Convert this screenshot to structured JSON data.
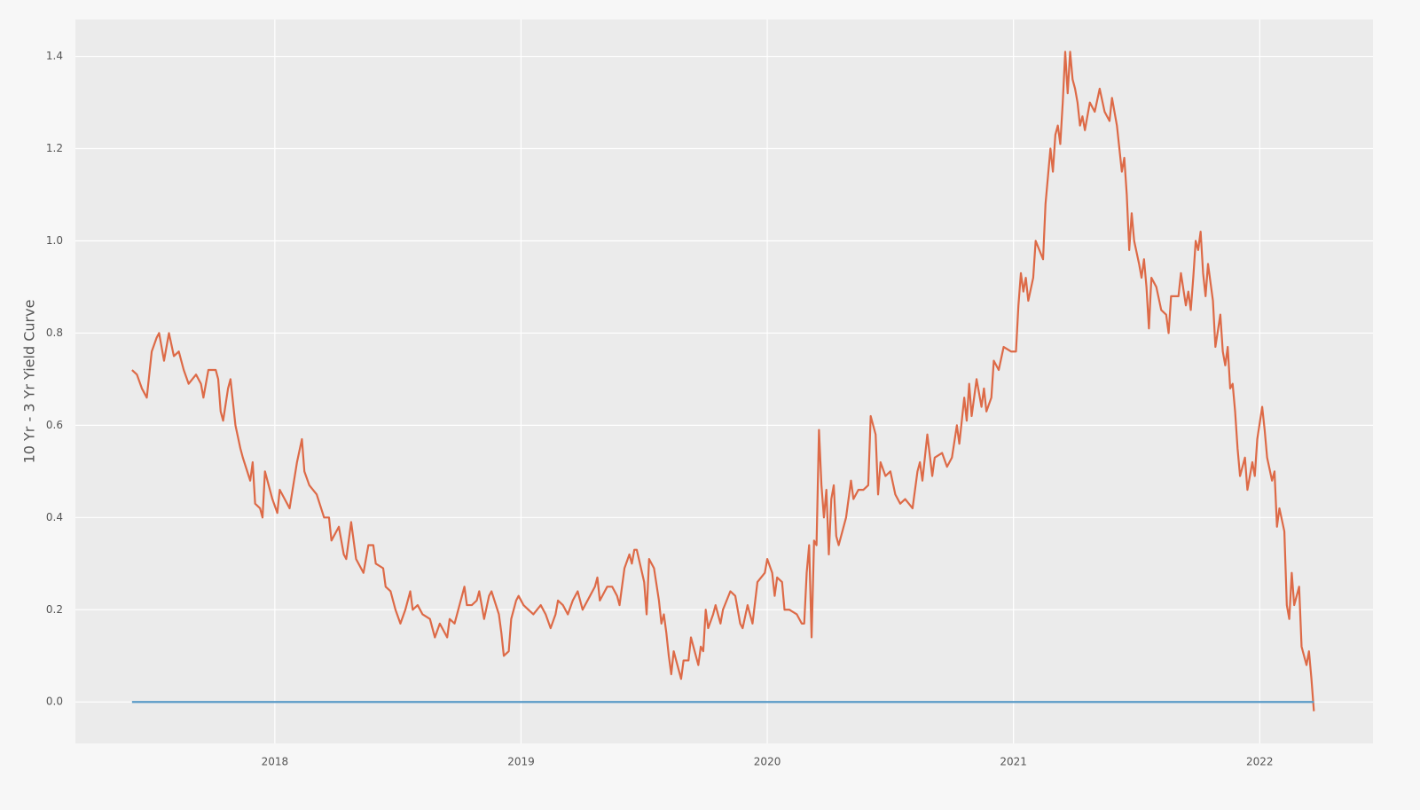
{
  "chart_data": {
    "type": "line",
    "ylabel": "10 Yr - 3 Yr Yield Curve",
    "xlim": [
      2017.19,
      2022.46
    ],
    "ylim": [
      -0.09,
      1.48
    ],
    "xticks": [
      2018,
      2019,
      2020,
      2021,
      2022
    ],
    "yticks": [
      {
        "value": 0,
        "label": "0.0"
      },
      0.2,
      0.4,
      0.6,
      0.8,
      {
        "value": 1,
        "label": "1.0"
      },
      1.2,
      1.4
    ],
    "grid": true,
    "series": [
      {
        "color": "#dd6a47",
        "x": [
          2017.42,
          2017.44,
          2017.46,
          2017.48,
          2017.5,
          2017.52,
          2017.53,
          2017.55,
          2017.57,
          2017.59,
          2017.61,
          2017.63,
          2017.65,
          2017.68,
          2017.7,
          2017.71,
          2017.73,
          2017.76,
          2017.77,
          2017.78,
          2017.79,
          2017.81,
          2017.82,
          2017.84,
          2017.86,
          2017.87,
          2017.9,
          2017.91,
          2017.92,
          2017.94,
          2017.95,
          2017.96,
          2017.99,
          2018.01,
          2018.02,
          2018.04,
          2018.06,
          2018.09,
          2018.11,
          2018.12,
          2018.14,
          2018.17,
          2018.2,
          2018.22,
          2018.23,
          2018.26,
          2018.28,
          2018.29,
          2018.31,
          2018.33,
          2018.36,
          2018.38,
          2018.4,
          2018.41,
          2018.44,
          2018.45,
          2018.47,
          2018.49,
          2018.51,
          2018.53,
          2018.55,
          2018.56,
          2018.58,
          2018.6,
          2018.63,
          2018.65,
          2018.67,
          2018.69,
          2018.7,
          2018.71,
          2018.73,
          2018.76,
          2018.77,
          2018.78,
          2018.8,
          2018.82,
          2018.83,
          2018.85,
          2018.87,
          2018.88,
          2018.91,
          2018.92,
          2018.93,
          2018.95,
          2018.96,
          2018.98,
          2018.99,
          2019.01,
          2019.03,
          2019.05,
          2019.08,
          2019.1,
          2019.12,
          2019.14,
          2019.15,
          2019.17,
          2019.19,
          2019.21,
          2019.23,
          2019.25,
          2019.28,
          2019.3,
          2019.31,
          2019.32,
          2019.35,
          2019.37,
          2019.39,
          2019.4,
          2019.42,
          2019.44,
          2019.45,
          2019.46,
          2019.47,
          2019.5,
          2019.51,
          2019.52,
          2019.54,
          2019.56,
          2019.57,
          2019.58,
          2019.59,
          2019.6,
          2019.61,
          2019.62,
          2019.64,
          2019.65,
          2019.66,
          2019.68,
          2019.69,
          2019.72,
          2019.73,
          2019.74,
          2019.75,
          2019.76,
          2019.78,
          2019.79,
          2019.81,
          2019.82,
          2019.85,
          2019.87,
          2019.89,
          2019.9,
          2019.92,
          2019.94,
          2019.96,
          2019.99,
          2020.0,
          2020.02,
          2020.03,
          2020.04,
          2020.06,
          2020.07,
          2020.09,
          2020.12,
          2020.14,
          2020.15,
          2020.16,
          2020.17,
          2020.18,
          2020.19,
          2020.2,
          2020.21,
          2020.22,
          2020.23,
          2020.24,
          2020.25,
          2020.26,
          2020.27,
          2020.28,
          2020.29,
          2020.32,
          2020.34,
          2020.35,
          2020.37,
          2020.39,
          2020.41,
          2020.42,
          2020.44,
          2020.45,
          2020.46,
          2020.48,
          2020.5,
          2020.52,
          2020.54,
          2020.56,
          2020.59,
          2020.61,
          2020.62,
          2020.63,
          2020.65,
          2020.67,
          2020.68,
          2020.71,
          2020.73,
          2020.75,
          2020.77,
          2020.78,
          2020.8,
          2020.81,
          2020.82,
          2020.83,
          2020.85,
          2020.87,
          2020.88,
          2020.89,
          2020.91,
          2020.92,
          2020.94,
          2020.96,
          2020.99,
          2021.01,
          2021.02,
          2021.03,
          2021.04,
          2021.05,
          2021.06,
          2021.08,
          2021.09,
          2021.12,
          2021.13,
          2021.14,
          2021.15,
          2021.16,
          2021.17,
          2021.18,
          2021.19,
          2021.2,
          2021.21,
          2021.22,
          2021.23,
          2021.24,
          2021.25,
          2021.26,
          2021.27,
          2021.28,
          2021.29,
          2021.31,
          2021.33,
          2021.35,
          2021.37,
          2021.39,
          2021.4,
          2021.42,
          2021.44,
          2021.45,
          2021.46,
          2021.47,
          2021.48,
          2021.49,
          2021.51,
          2021.52,
          2021.53,
          2021.54,
          2021.55,
          2021.56,
          2021.58,
          2021.6,
          2021.62,
          2021.63,
          2021.64,
          2021.67,
          2021.68,
          2021.7,
          2021.71,
          2021.72,
          2021.73,
          2021.74,
          2021.75,
          2021.76,
          2021.77,
          2021.78,
          2021.79,
          2021.81,
          2021.82,
          2021.84,
          2021.85,
          2021.86,
          2021.87,
          2021.88,
          2021.89,
          2021.9,
          2021.91,
          2021.92,
          2021.94,
          2021.95,
          2021.97,
          2021.98,
          2021.99,
          2022.01,
          2022.02,
          2022.03,
          2022.05,
          2022.06,
          2022.07,
          2022.08,
          2022.1,
          2022.11,
          2022.12,
          2022.13,
          2022.14,
          2022.16,
          2022.17,
          2022.19,
          2022.2,
          2022.21,
          2022.22
        ],
        "values": [
          0.72,
          0.71,
          0.68,
          0.66,
          0.76,
          0.79,
          0.8,
          0.74,
          0.8,
          0.75,
          0.76,
          0.72,
          0.69,
          0.71,
          0.69,
          0.66,
          0.72,
          0.72,
          0.7,
          0.63,
          0.61,
          0.68,
          0.7,
          0.6,
          0.55,
          0.53,
          0.48,
          0.52,
          0.43,
          0.42,
          0.4,
          0.5,
          0.44,
          0.41,
          0.46,
          0.44,
          0.42,
          0.52,
          0.57,
          0.5,
          0.47,
          0.45,
          0.4,
          0.4,
          0.35,
          0.38,
          0.32,
          0.31,
          0.39,
          0.31,
          0.28,
          0.34,
          0.34,
          0.3,
          0.29,
          0.25,
          0.24,
          0.2,
          0.17,
          0.2,
          0.24,
          0.2,
          0.21,
          0.19,
          0.18,
          0.14,
          0.17,
          0.15,
          0.14,
          0.18,
          0.17,
          0.23,
          0.25,
          0.21,
          0.21,
          0.22,
          0.24,
          0.18,
          0.23,
          0.24,
          0.19,
          0.15,
          0.1,
          0.11,
          0.18,
          0.22,
          0.23,
          0.21,
          0.2,
          0.19,
          0.21,
          0.19,
          0.16,
          0.19,
          0.22,
          0.21,
          0.19,
          0.22,
          0.24,
          0.2,
          0.23,
          0.25,
          0.27,
          0.22,
          0.25,
          0.25,
          0.23,
          0.21,
          0.29,
          0.32,
          0.3,
          0.33,
          0.33,
          0.26,
          0.19,
          0.31,
          0.29,
          0.22,
          0.17,
          0.19,
          0.15,
          0.1,
          0.06,
          0.11,
          0.07,
          0.05,
          0.09,
          0.09,
          0.14,
          0.08,
          0.12,
          0.11,
          0.2,
          0.16,
          0.19,
          0.21,
          0.17,
          0.2,
          0.24,
          0.23,
          0.17,
          0.16,
          0.21,
          0.17,
          0.26,
          0.28,
          0.31,
          0.28,
          0.23,
          0.27,
          0.26,
          0.2,
          0.2,
          0.19,
          0.17,
          0.17,
          0.28,
          0.34,
          0.14,
          0.35,
          0.34,
          0.59,
          0.47,
          0.4,
          0.46,
          0.32,
          0.44,
          0.47,
          0.36,
          0.34,
          0.4,
          0.48,
          0.44,
          0.46,
          0.46,
          0.47,
          0.62,
          0.58,
          0.45,
          0.52,
          0.49,
          0.5,
          0.45,
          0.43,
          0.44,
          0.42,
          0.5,
          0.52,
          0.48,
          0.58,
          0.49,
          0.53,
          0.54,
          0.51,
          0.53,
          0.6,
          0.56,
          0.66,
          0.61,
          0.69,
          0.62,
          0.7,
          0.64,
          0.68,
          0.63,
          0.66,
          0.74,
          0.72,
          0.77,
          0.76,
          0.76,
          0.86,
          0.93,
          0.89,
          0.92,
          0.87,
          0.92,
          1.0,
          0.96,
          1.08,
          1.14,
          1.2,
          1.15,
          1.23,
          1.25,
          1.21,
          1.3,
          1.41,
          1.32,
          1.41,
          1.35,
          1.33,
          1.3,
          1.25,
          1.27,
          1.24,
          1.3,
          1.28,
          1.33,
          1.28,
          1.26,
          1.31,
          1.25,
          1.15,
          1.18,
          1.1,
          0.98,
          1.06,
          1.0,
          0.95,
          0.92,
          0.96,
          0.9,
          0.81,
          0.92,
          0.9,
          0.85,
          0.84,
          0.8,
          0.88,
          0.88,
          0.93,
          0.86,
          0.89,
          0.85,
          0.92,
          1.0,
          0.98,
          1.02,
          0.93,
          0.88,
          0.95,
          0.87,
          0.77,
          0.84,
          0.76,
          0.73,
          0.77,
          0.68,
          0.69,
          0.63,
          0.55,
          0.49,
          0.53,
          0.46,
          0.52,
          0.49,
          0.57,
          0.64,
          0.59,
          0.53,
          0.48,
          0.5,
          0.38,
          0.42,
          0.37,
          0.21,
          0.18,
          0.28,
          0.21,
          0.25,
          0.12,
          0.08,
          0.11,
          0.05,
          -0.02
        ]
      },
      {
        "color": "#5b9bc8",
        "x": [
          2017.42,
          2022.22
        ],
        "values": [
          0,
          0
        ]
      }
    ]
  }
}
